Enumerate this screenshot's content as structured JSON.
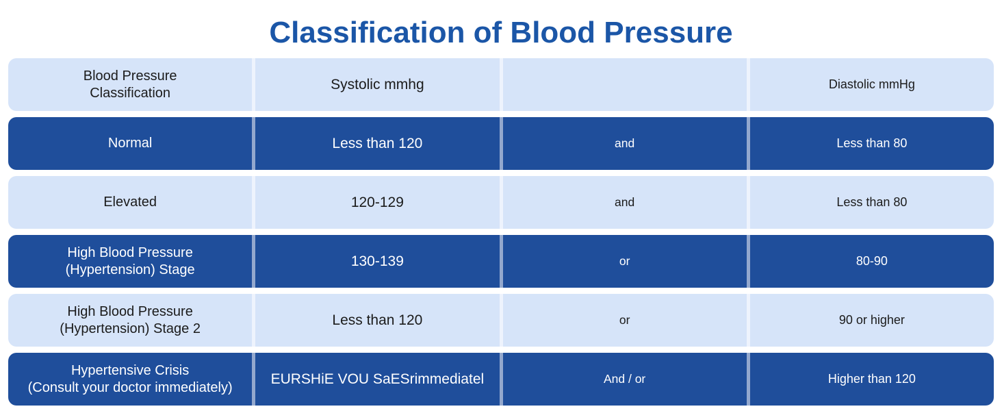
{
  "title": "Classification of Blood Pressure",
  "colors": {
    "title": "#1b56a7",
    "dark_bg": "#1f4e9b",
    "light_bg": "#d6e4f9",
    "dark_text": "#ffffff",
    "light_text": "#1b1b1b",
    "dark_separator": "#93a8ce",
    "light_separator": "#eef3fd",
    "page_bg": "#ffffff"
  },
  "table": {
    "rows": [
      {
        "variant": "light",
        "cells": [
          {
            "lines": [
              "Blood Pressure",
              "Classification"
            ]
          },
          {
            "lines": [
              "Systolic mmhg"
            ]
          },
          {
            "lines": []
          },
          {
            "lines": [
              "Diastolic mmHg"
            ]
          }
        ]
      },
      {
        "variant": "dark",
        "cells": [
          {
            "lines": [
              "Normal"
            ]
          },
          {
            "lines": [
              "Less than 120"
            ]
          },
          {
            "lines": [
              "and"
            ]
          },
          {
            "lines": [
              "Less than 80"
            ]
          }
        ]
      },
      {
        "variant": "light",
        "cells": [
          {
            "lines": [
              "Elevated"
            ]
          },
          {
            "lines": [
              "120-129"
            ]
          },
          {
            "lines": [
              "and"
            ]
          },
          {
            "lines": [
              "Less than 80"
            ]
          }
        ]
      },
      {
        "variant": "dark",
        "cells": [
          {
            "lines": [
              "High Blood Pressure",
              "(Hypertension) Stage"
            ]
          },
          {
            "lines": [
              "130-139"
            ]
          },
          {
            "lines": [
              "or"
            ]
          },
          {
            "lines": [
              "80-90"
            ]
          }
        ]
      },
      {
        "variant": "light",
        "cells": [
          {
            "lines": [
              "High Blood Pressure",
              "(Hypertension) Stage 2"
            ]
          },
          {
            "lines": [
              "Less than 120"
            ]
          },
          {
            "lines": [
              "or"
            ]
          },
          {
            "lines": [
              "90 or higher"
            ]
          }
        ]
      },
      {
        "variant": "dark",
        "cells": [
          {
            "lines": [
              "Hypertensive Crisis",
              "(Consult your doctor immediately)"
            ]
          },
          {
            "lines": [
              "EURSHiE VOU SaESrimmediatel"
            ]
          },
          {
            "lines": [
              "And / or"
            ]
          },
          {
            "lines": [
              "Higher than 120"
            ]
          }
        ]
      }
    ]
  },
  "chart_data": {
    "type": "table",
    "title": "Classification of Blood Pressure",
    "columns": [
      "Blood Pressure Classification",
      "Systolic mmhg",
      "",
      "Diastolic mmHg"
    ],
    "rows": [
      [
        "Normal",
        "Less than 120",
        "and",
        "Less than 80"
      ],
      [
        "Elevated",
        "120-129",
        "and",
        "Less than 80"
      ],
      [
        "High Blood Pressure (Hypertension) Stage",
        "130-139",
        "or",
        "80-90"
      ],
      [
        "High Blood Pressure (Hypertension) Stage 2",
        "Less than 120",
        "or",
        "90 or higher"
      ],
      [
        "Hypertensive Crisis (Consult your doctor immediately)",
        "EURSHiE VOU SaESrimmediatel",
        "And / or",
        "Higher than 120"
      ]
    ]
  }
}
